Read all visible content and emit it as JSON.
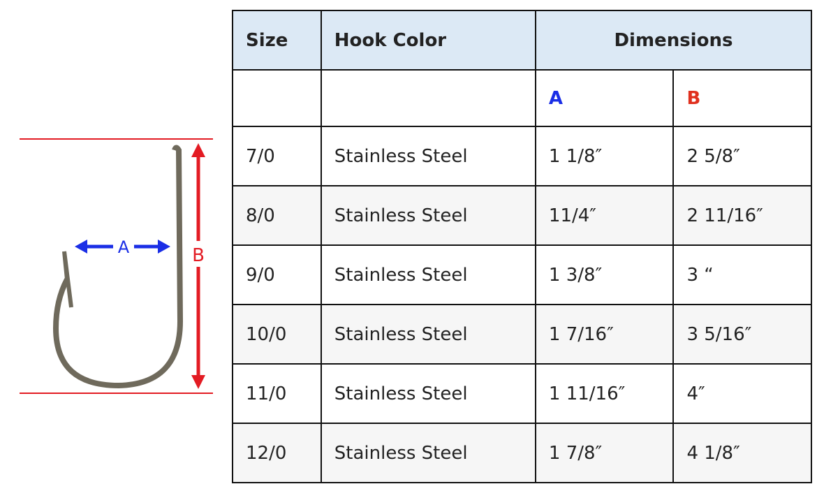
{
  "diagram": {
    "a_label": "A",
    "b_label": "B"
  },
  "table": {
    "header": [
      "Size",
      "Hook Color",
      "Dimensions"
    ],
    "subheader": [
      "A",
      "B"
    ],
    "rows": [
      [
        "7/0",
        "Stainless Steel",
        "1 1/8″",
        "2 5/8″"
      ],
      [
        "8/0",
        "Stainless Steel",
        "11/4″",
        "2 11/16″"
      ],
      [
        "9/0",
        "Stainless Steel",
        "1 3/8″",
        "3 “"
      ],
      [
        "10/0",
        "Stainless Steel",
        "1 7/16″",
        "3 5/16″"
      ],
      [
        "11/0",
        "Stainless Steel",
        "1 11/16″",
        "4″"
      ],
      [
        "12/0",
        "Stainless Steel",
        "1 7/8″",
        "4 1/8″"
      ]
    ]
  }
}
